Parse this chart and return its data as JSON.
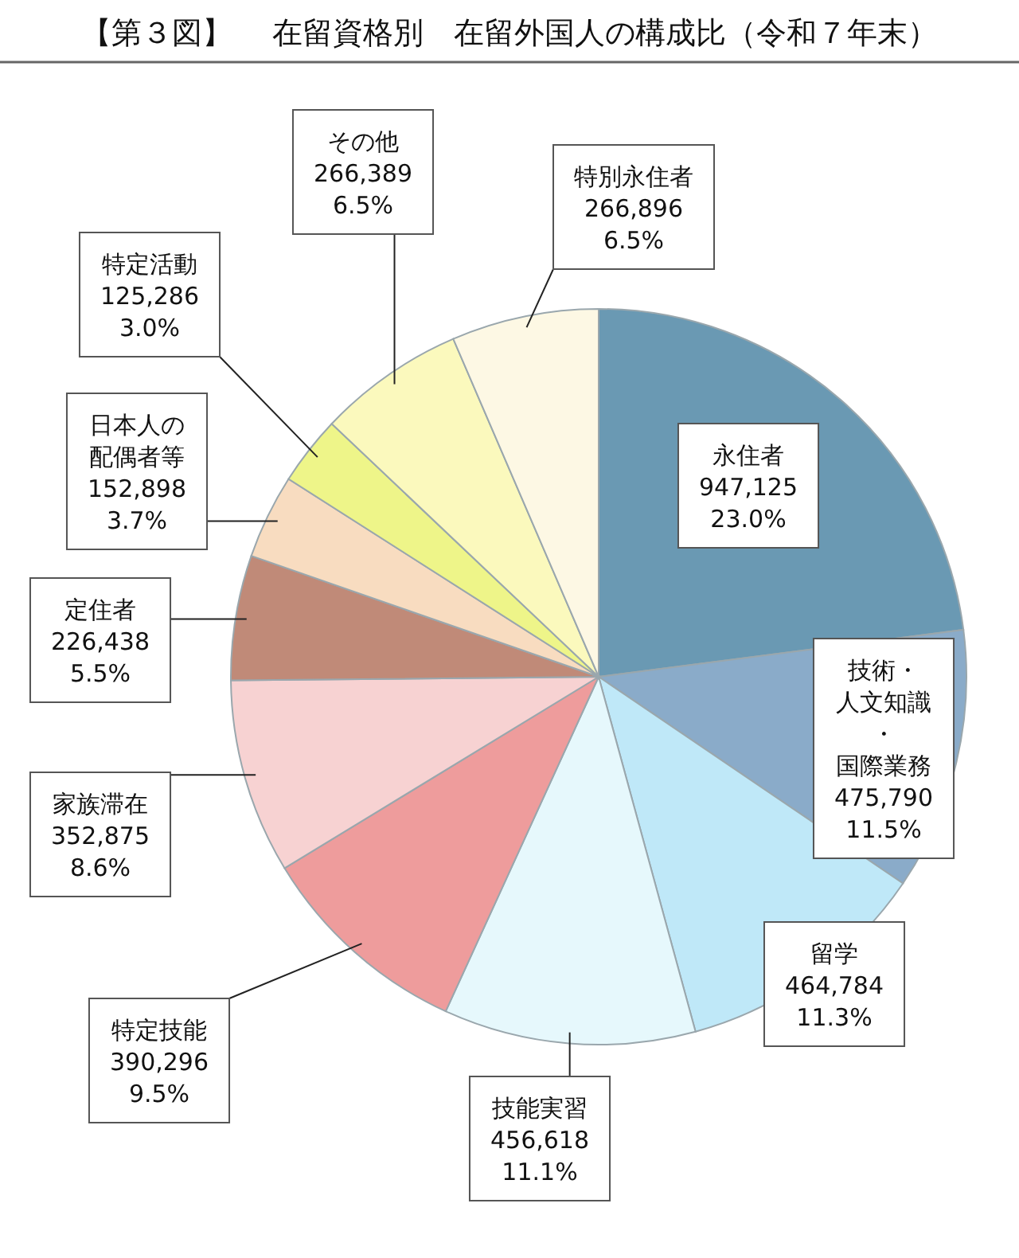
{
  "chart_data": {
    "type": "pie",
    "title": "【第３図】　 在留資格別　在留外国人の構成比（令和７年末）",
    "categories": [
      "永住者",
      "技術・人文知識・国際業務",
      "留学",
      "技能実習",
      "特定技能",
      "家族滞在",
      "定住者",
      "日本人の配偶者等",
      "特定活動",
      "その他",
      "特別永住者"
    ],
    "values": [
      947125,
      475790,
      464784,
      456618,
      390296,
      352875,
      226438,
      152898,
      125286,
      266389,
      266896
    ],
    "value_labels": [
      "947,125\n23.0%",
      "475,790\n11.5%",
      "464,784\n11.3%",
      "456,618\n11.1%",
      "390,296\n9.5%",
      "352,875\n8.6%",
      "226,438\n5.5%",
      "152,898\n3.7%",
      "125,286\n3.0%",
      "266,389\n6.5%",
      "266,896\n6.5%"
    ],
    "colors": [
      "#6a99b3",
      "#8aabc9",
      "#bfe8f8",
      "#e6f8fc",
      "#ee9c9c",
      "#f7d2d2",
      "#c08a78",
      "#f8dcc0",
      "#eef589",
      "#fbf9bd",
      "#fdf8e4"
    ]
  }
}
